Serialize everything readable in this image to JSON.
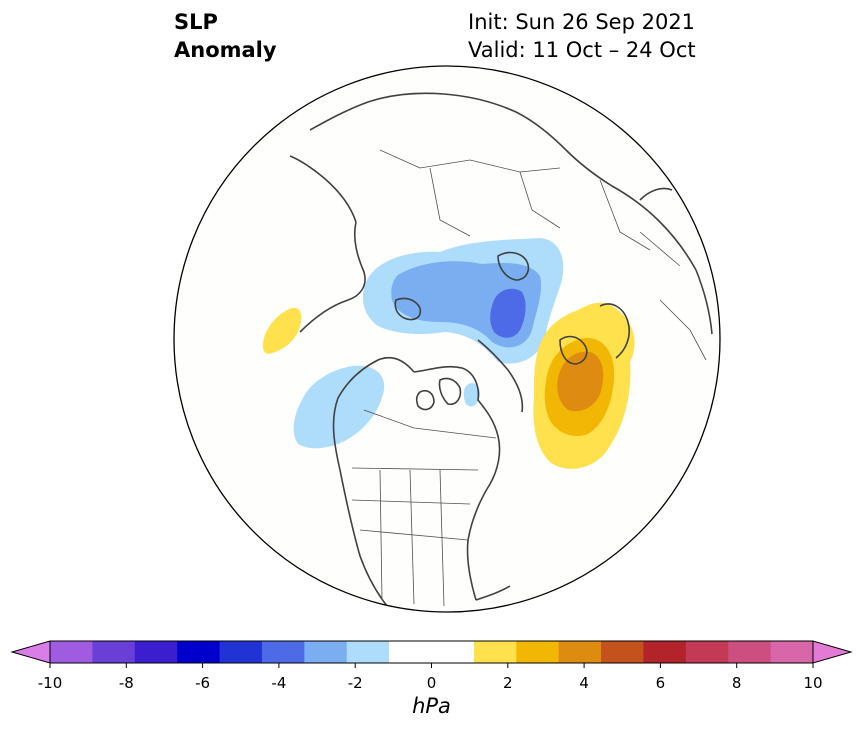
{
  "title": {
    "line1": "SLP",
    "line2": "Anomaly"
  },
  "subtitle": {
    "init": "Init: Sun 26 Sep 2021",
    "valid": "Valid: 11 Oct – 24 Oct"
  },
  "colorbar": {
    "unit": "hPa",
    "min": -10,
    "max": 10,
    "tick_labels": [
      "-10",
      "-8",
      "-6",
      "-4",
      "-2",
      "0",
      "2",
      "4",
      "6",
      "8",
      "10"
    ],
    "colors": [
      "#d97ee8",
      "#a05ce0",
      "#6a3fd8",
      "#3b1fcf",
      "#0000cc",
      "#2233d6",
      "#4d6be6",
      "#7aaef0",
      "#aedcfb",
      "#ffffff",
      "#ffffff",
      "#ffe14d",
      "#f2b705",
      "#de8b12",
      "#c4521c",
      "#b3242a",
      "#c23a56",
      "#cc4f80",
      "#d966a8",
      "#e27ad6"
    ],
    "extend": "both"
  },
  "anomalies": [
    {
      "id": "siberia-low",
      "sign": "negative",
      "peak_hpa": -4
    },
    {
      "id": "gulf-of-alaska-low",
      "sign": "negative",
      "peak_hpa": -2
    },
    {
      "id": "greenland-barents-high",
      "sign": "positive",
      "peak_hpa": 4
    },
    {
      "id": "north-pacific-high",
      "sign": "positive",
      "peak_hpa": 2
    }
  ]
}
